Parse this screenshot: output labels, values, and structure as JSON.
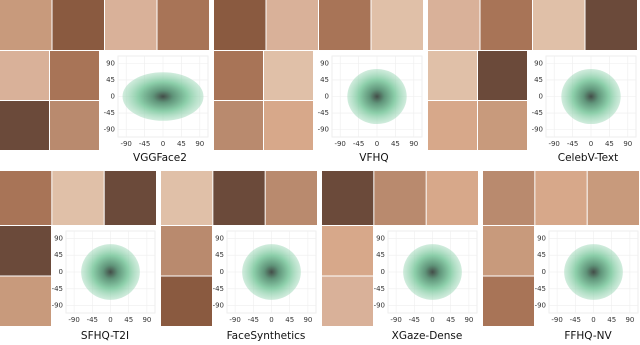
{
  "figure": {
    "panels": [
      {
        "label": "VGGFace2",
        "xlim": [
          -110,
          110
        ],
        "ylim": [
          -110,
          110
        ],
        "xticks": [
          -90,
          -45,
          0,
          45,
          90
        ],
        "yticks": [
          -90,
          -45,
          0,
          45,
          90
        ]
      },
      {
        "label": "VFHQ",
        "xlim": [
          -110,
          110
        ],
        "ylim": [
          -110,
          110
        ],
        "xticks": [
          -90,
          -45,
          0,
          45,
          90
        ],
        "yticks": [
          -90,
          -45,
          0,
          45,
          90
        ]
      },
      {
        "label": "CelebV-Text",
        "xlim": [
          -110,
          110
        ],
        "ylim": [
          -110,
          110
        ],
        "xticks": [
          -90,
          -45,
          0,
          45,
          90
        ],
        "yticks": [
          -90,
          -45,
          0,
          45,
          90
        ]
      },
      {
        "label": "SFHQ-T2I",
        "xlim": [
          -110,
          110
        ],
        "ylim": [
          -110,
          110
        ],
        "xticks": [
          -90,
          -45,
          0,
          45,
          90
        ],
        "yticks": [
          -90,
          -45,
          0,
          45,
          90
        ]
      },
      {
        "label": "FaceSynthetics",
        "xlim": [
          -110,
          110
        ],
        "ylim": [
          -110,
          110
        ],
        "xticks": [
          -90,
          -45,
          0,
          45,
          90
        ],
        "yticks": [
          -90,
          -45,
          0,
          45,
          90
        ]
      },
      {
        "label": "XGaze-Dense",
        "xlim": [
          -110,
          110
        ],
        "ylim": [
          -110,
          110
        ],
        "xticks": [
          -90,
          -45,
          0,
          45,
          90
        ],
        "yticks": [
          -90,
          -45,
          0,
          45,
          90
        ]
      },
      {
        "label": "FFHQ-NV",
        "xlim": [
          -110,
          110
        ],
        "ylim": [
          -110,
          110
        ],
        "xticks": [
          -90,
          -45,
          0,
          45,
          90
        ],
        "yticks": [
          -90,
          -45,
          0,
          45,
          90
        ]
      }
    ]
  }
}
